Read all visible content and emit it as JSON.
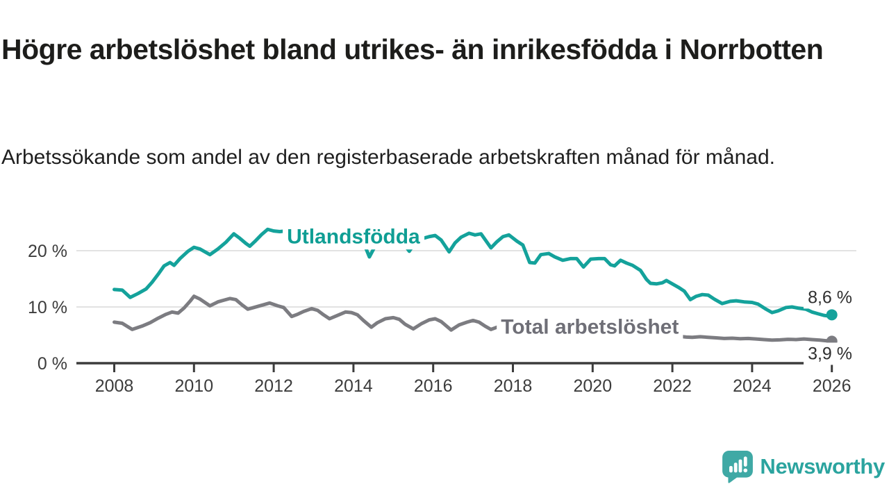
{
  "header": {
    "title": "Högre arbetslöshet bland utrikes- än inrikesfödda i Norrbotten",
    "subtitle": "Arbetssökande som andel av den registerbaserade arbetskraften månad för månad."
  },
  "branding": {
    "logo_text": "Newsworthy",
    "logo_text_color": "#2ba49f",
    "logo_icon_color": "#3fa9a5"
  },
  "colors": {
    "teal": "#14a29b",
    "gray": "#7c7c81",
    "series_label_gray": "#6f6f77",
    "axis": "#3c3c3c",
    "grid": "#d8d8d8",
    "value_label": "#2f2f2f",
    "background": "#ffffff"
  },
  "chart_data": {
    "type": "line",
    "unit": "%",
    "x_axis": {
      "min": 2007.05,
      "max": 2026.6,
      "grid": false,
      "ticks": [
        {
          "year": 2008,
          "label": "2008"
        },
        {
          "year": 2010,
          "label": "2010"
        },
        {
          "year": 2012,
          "label": "2012"
        },
        {
          "year": 2014,
          "label": "2014"
        },
        {
          "year": 2016,
          "label": "2016"
        },
        {
          "year": 2018,
          "label": "2018"
        },
        {
          "year": 2020,
          "label": "2020"
        },
        {
          "year": 2022,
          "label": "2022"
        },
        {
          "year": 2024,
          "label": "2024"
        },
        {
          "year": 2026,
          "label": "2026"
        }
      ]
    },
    "y_axis": {
      "min": 0,
      "max": 25,
      "grid": true,
      "ticks": [
        {
          "value": 0,
          "label": "0 %"
        },
        {
          "value": 10,
          "label": "10 %"
        },
        {
          "value": 20,
          "label": "20 %"
        }
      ]
    },
    "series": [
      {
        "name": "Utlandsfödda",
        "color": "#14a29b",
        "label_color": "#0f9e94",
        "label_anchor": {
          "year": 2014.0,
          "value": 22.5
        },
        "end_label": {
          "text": "8,6 %",
          "side": "above"
        },
        "end_value": 8.6,
        "points": [
          [
            2008.0,
            13.1
          ],
          [
            2008.2,
            13.0
          ],
          [
            2008.4,
            11.7
          ],
          [
            2008.6,
            12.4
          ],
          [
            2008.8,
            13.2
          ],
          [
            2008.95,
            14.4
          ],
          [
            2009.1,
            15.8
          ],
          [
            2009.25,
            17.3
          ],
          [
            2009.4,
            17.9
          ],
          [
            2009.5,
            17.4
          ],
          [
            2009.65,
            18.6
          ],
          [
            2009.85,
            19.9
          ],
          [
            2010.0,
            20.6
          ],
          [
            2010.15,
            20.3
          ],
          [
            2010.4,
            19.3
          ],
          [
            2010.6,
            20.3
          ],
          [
            2010.8,
            21.5
          ],
          [
            2011.0,
            23.0
          ],
          [
            2011.15,
            22.2
          ],
          [
            2011.3,
            21.3
          ],
          [
            2011.4,
            20.8
          ],
          [
            2011.55,
            21.8
          ],
          [
            2011.7,
            22.9
          ],
          [
            2011.85,
            23.8
          ],
          [
            2012.0,
            23.5
          ],
          [
            2012.15,
            23.4
          ],
          [
            2012.3,
            23.5
          ],
          [
            2012.45,
            20.7
          ],
          [
            2012.6,
            22.4
          ],
          [
            2012.8,
            23.0
          ],
          [
            2013.0,
            23.3
          ],
          [
            2013.2,
            23.0
          ],
          [
            2013.4,
            22.3
          ],
          [
            2013.55,
            22.8
          ],
          [
            2013.75,
            23.2
          ],
          [
            2013.95,
            23.0
          ],
          [
            2014.1,
            22.6
          ],
          [
            2014.25,
            21.5
          ],
          [
            2014.4,
            18.9
          ],
          [
            2014.55,
            20.9
          ],
          [
            2014.7,
            21.9
          ],
          [
            2014.9,
            22.3
          ],
          [
            2015.05,
            22.4
          ],
          [
            2015.2,
            21.9
          ],
          [
            2015.4,
            19.9
          ],
          [
            2015.55,
            21.5
          ],
          [
            2015.75,
            22.2
          ],
          [
            2015.9,
            22.5
          ],
          [
            2016.05,
            22.7
          ],
          [
            2016.2,
            21.9
          ],
          [
            2016.4,
            19.8
          ],
          [
            2016.55,
            21.4
          ],
          [
            2016.7,
            22.4
          ],
          [
            2016.9,
            23.1
          ],
          [
            2017.05,
            22.8
          ],
          [
            2017.2,
            23.0
          ],
          [
            2017.45,
            20.5
          ],
          [
            2017.6,
            21.6
          ],
          [
            2017.75,
            22.5
          ],
          [
            2017.9,
            22.8
          ],
          [
            2018.1,
            21.7
          ],
          [
            2018.25,
            21.0
          ],
          [
            2018.42,
            17.9
          ],
          [
            2018.55,
            17.8
          ],
          [
            2018.7,
            19.3
          ],
          [
            2018.9,
            19.5
          ],
          [
            2019.05,
            18.9
          ],
          [
            2019.25,
            18.3
          ],
          [
            2019.45,
            18.6
          ],
          [
            2019.6,
            18.6
          ],
          [
            2019.77,
            17.1
          ],
          [
            2019.95,
            18.5
          ],
          [
            2020.15,
            18.6
          ],
          [
            2020.3,
            18.6
          ],
          [
            2020.45,
            17.5
          ],
          [
            2020.55,
            17.3
          ],
          [
            2020.7,
            18.3
          ],
          [
            2020.85,
            17.8
          ],
          [
            2021.0,
            17.4
          ],
          [
            2021.2,
            16.5
          ],
          [
            2021.35,
            14.9
          ],
          [
            2021.45,
            14.2
          ],
          [
            2021.6,
            14.1
          ],
          [
            2021.75,
            14.3
          ],
          [
            2021.85,
            14.7
          ],
          [
            2022.0,
            14.1
          ],
          [
            2022.15,
            13.5
          ],
          [
            2022.3,
            12.8
          ],
          [
            2022.45,
            11.3
          ],
          [
            2022.6,
            11.9
          ],
          [
            2022.75,
            12.2
          ],
          [
            2022.9,
            12.1
          ],
          [
            2023.05,
            11.4
          ],
          [
            2023.25,
            10.6
          ],
          [
            2023.45,
            11.0
          ],
          [
            2023.6,
            11.1
          ],
          [
            2023.8,
            10.9
          ],
          [
            2024.0,
            10.8
          ],
          [
            2024.15,
            10.5
          ],
          [
            2024.35,
            9.6
          ],
          [
            2024.5,
            9.0
          ],
          [
            2024.65,
            9.3
          ],
          [
            2024.85,
            9.9
          ],
          [
            2025.0,
            10.0
          ],
          [
            2025.15,
            9.8
          ],
          [
            2025.35,
            9.6
          ],
          [
            2025.5,
            9.1
          ],
          [
            2025.65,
            8.8
          ],
          [
            2025.8,
            8.5
          ],
          [
            2025.9,
            8.4
          ],
          [
            2026.0,
            8.6
          ]
        ]
      },
      {
        "name": "Total arbetslöshet",
        "color": "#7c7c81",
        "label_color": "#6f6f77",
        "label_anchor": {
          "year": 2019.93,
          "value": 6.4
        },
        "end_label": {
          "text": "3,9 %",
          "side": "below"
        },
        "end_value": 3.9,
        "points": [
          [
            2008.0,
            7.3
          ],
          [
            2008.2,
            7.1
          ],
          [
            2008.45,
            6.0
          ],
          [
            2008.7,
            6.6
          ],
          [
            2008.9,
            7.2
          ],
          [
            2009.1,
            8.0
          ],
          [
            2009.3,
            8.7
          ],
          [
            2009.45,
            9.1
          ],
          [
            2009.6,
            8.9
          ],
          [
            2009.75,
            9.8
          ],
          [
            2009.9,
            11.0
          ],
          [
            2010.0,
            11.9
          ],
          [
            2010.15,
            11.4
          ],
          [
            2010.4,
            10.2
          ],
          [
            2010.6,
            10.9
          ],
          [
            2010.75,
            11.2
          ],
          [
            2010.9,
            11.5
          ],
          [
            2011.05,
            11.3
          ],
          [
            2011.2,
            10.4
          ],
          [
            2011.35,
            9.6
          ],
          [
            2011.5,
            9.9
          ],
          [
            2011.7,
            10.3
          ],
          [
            2011.9,
            10.7
          ],
          [
            2012.1,
            10.2
          ],
          [
            2012.25,
            9.9
          ],
          [
            2012.45,
            8.3
          ],
          [
            2012.6,
            8.7
          ],
          [
            2012.75,
            9.2
          ],
          [
            2012.95,
            9.7
          ],
          [
            2013.1,
            9.4
          ],
          [
            2013.25,
            8.6
          ],
          [
            2013.4,
            7.9
          ],
          [
            2013.6,
            8.5
          ],
          [
            2013.8,
            9.1
          ],
          [
            2013.95,
            9.0
          ],
          [
            2014.1,
            8.6
          ],
          [
            2014.25,
            7.6
          ],
          [
            2014.45,
            6.4
          ],
          [
            2014.6,
            7.2
          ],
          [
            2014.8,
            7.9
          ],
          [
            2015.0,
            8.1
          ],
          [
            2015.15,
            7.8
          ],
          [
            2015.3,
            6.9
          ],
          [
            2015.5,
            6.1
          ],
          [
            2015.7,
            7.0
          ],
          [
            2015.9,
            7.7
          ],
          [
            2016.05,
            7.9
          ],
          [
            2016.2,
            7.4
          ],
          [
            2016.45,
            5.9
          ],
          [
            2016.65,
            6.8
          ],
          [
            2016.85,
            7.3
          ],
          [
            2017.0,
            7.6
          ],
          [
            2017.15,
            7.3
          ],
          [
            2017.3,
            6.6
          ],
          [
            2017.45,
            6.0
          ],
          [
            2017.6,
            6.4
          ],
          [
            2017.8,
            6.8
          ],
          [
            2018.0,
            7.0
          ],
          [
            2018.2,
            6.4
          ],
          [
            2018.45,
            5.6
          ],
          [
            2018.65,
            6.1
          ],
          [
            2018.9,
            6.6
          ],
          [
            2019.1,
            6.3
          ],
          [
            2019.4,
            5.4
          ],
          [
            2019.65,
            5.9
          ],
          [
            2019.9,
            6.3
          ],
          [
            2020.1,
            6.5
          ],
          [
            2020.35,
            6.9
          ],
          [
            2020.6,
            6.7
          ],
          [
            2020.9,
            6.2
          ],
          [
            2021.1,
            5.9
          ],
          [
            2021.4,
            5.4
          ],
          [
            2021.7,
            5.1
          ],
          [
            2022.0,
            4.9
          ],
          [
            2022.2,
            4.75
          ],
          [
            2022.35,
            4.65
          ],
          [
            2022.5,
            4.6
          ],
          [
            2022.7,
            4.7
          ],
          [
            2022.9,
            4.6
          ],
          [
            2023.1,
            4.5
          ],
          [
            2023.3,
            4.4
          ],
          [
            2023.5,
            4.45
          ],
          [
            2023.7,
            4.35
          ],
          [
            2023.9,
            4.4
          ],
          [
            2024.1,
            4.3
          ],
          [
            2024.3,
            4.2
          ],
          [
            2024.5,
            4.1
          ],
          [
            2024.7,
            4.15
          ],
          [
            2024.9,
            4.25
          ],
          [
            2025.1,
            4.2
          ],
          [
            2025.3,
            4.3
          ],
          [
            2025.5,
            4.2
          ],
          [
            2025.7,
            4.1
          ],
          [
            2025.85,
            4.0
          ],
          [
            2026.0,
            3.9
          ]
        ]
      }
    ]
  }
}
